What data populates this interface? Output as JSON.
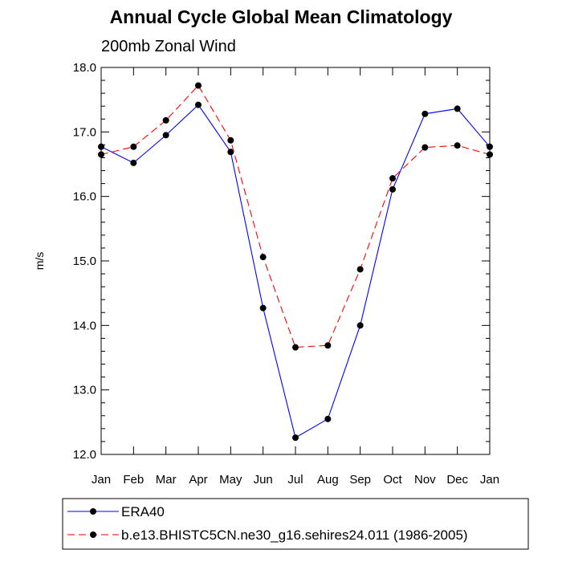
{
  "chart_data": {
    "type": "line",
    "title": "Annual Cycle Global Mean Climatology",
    "subtitle": "200mb Zonal Wind",
    "xlabel": "",
    "ylabel": "m/s",
    "categories": [
      "Jan",
      "Feb",
      "Mar",
      "Apr",
      "May",
      "Jun",
      "Jul",
      "Aug",
      "Sep",
      "Oct",
      "Nov",
      "Dec",
      "Jan"
    ],
    "ylim": [
      12.0,
      18.0
    ],
    "yticks": [
      "12.0",
      "13.0",
      "14.0",
      "15.0",
      "16.0",
      "17.0",
      "18.0"
    ],
    "grid": false,
    "legend_position": "bottom",
    "series": [
      {
        "name": "ERA40",
        "color": "#0000ff",
        "line_style": "solid",
        "values": [
          16.77,
          16.52,
          16.95,
          17.42,
          16.69,
          14.27,
          12.26,
          12.55,
          14.0,
          16.11,
          17.28,
          17.36,
          16.77
        ]
      },
      {
        "name": "b.e13.BHISTC5CN.ne30_g16.sehires24.011 (1986-2005)",
        "color": "#ff0000",
        "line_style": "dashed",
        "values": [
          16.65,
          16.77,
          17.18,
          17.72,
          16.87,
          15.06,
          13.66,
          13.69,
          14.87,
          16.28,
          16.76,
          16.79,
          16.65
        ]
      }
    ]
  }
}
